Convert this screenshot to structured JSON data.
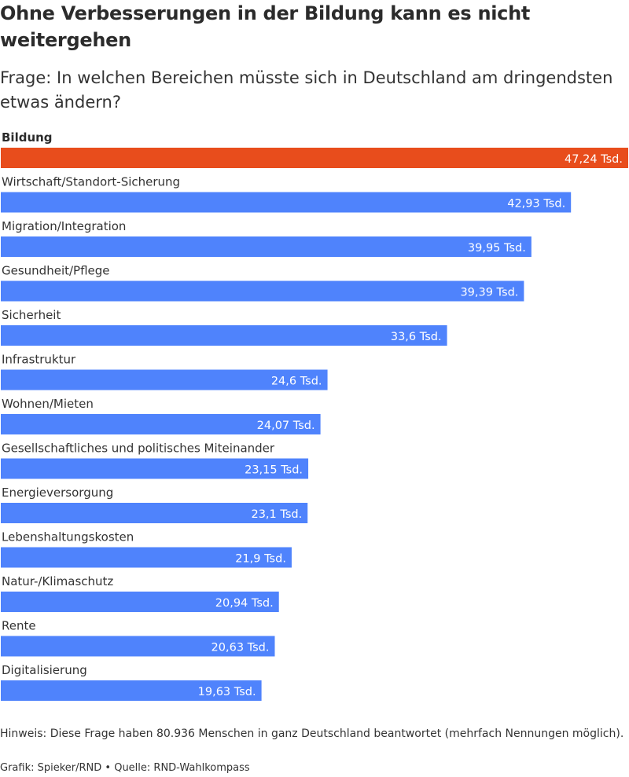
{
  "title": "Ohne Verbesserungen in der Bildung kann es nicht weitergehen",
  "subtitle": "Frage: In welchen Bereichen müsste sich in Deutschland am dringendsten etwas ändern?",
  "colors": {
    "highlight": "#e84d1c",
    "default": "#4f83fc"
  },
  "chart_data": {
    "type": "bar",
    "orientation": "horizontal",
    "unit": "Tsd.",
    "categories": [
      "Bildung",
      "Wirtschaft/Standort-Sicherung",
      "Migration/Integration",
      "Gesundheit/Pflege",
      "Sicherheit",
      "Infrastruktur",
      "Wohnen/Mieten",
      "Gesellschaftliches und politisches Miteinander",
      "Energieversorgung",
      "Lebenshaltungskosten",
      "Natur-/Klimaschutz",
      "Rente",
      "Digitalisierung"
    ],
    "values": [
      47.24,
      42.93,
      39.95,
      39.39,
      33.6,
      24.6,
      24.07,
      23.15,
      23.1,
      21.9,
      20.94,
      20.63,
      19.63
    ],
    "labels": [
      "47,24 Tsd.",
      "42,93 Tsd.",
      "39,95 Tsd.",
      "39,39 Tsd.",
      "33,6 Tsd.",
      "24,6 Tsd.",
      "24,07 Tsd.",
      "23,15 Tsd.",
      "23,1 Tsd.",
      "21,9 Tsd.",
      "20,94 Tsd.",
      "20,63 Tsd.",
      "19,63 Tsd."
    ],
    "highlighted": "Bildung",
    "xlim": [
      0,
      47.24
    ]
  },
  "footnote": "Hinweis: Diese Frage haben 80.936 Menschen in ganz Deutschland beantwortet (mehrfach Nennungen möglich).",
  "credits": "Grafik: Spieker/RND • Quelle: RND-Wahlkompass"
}
